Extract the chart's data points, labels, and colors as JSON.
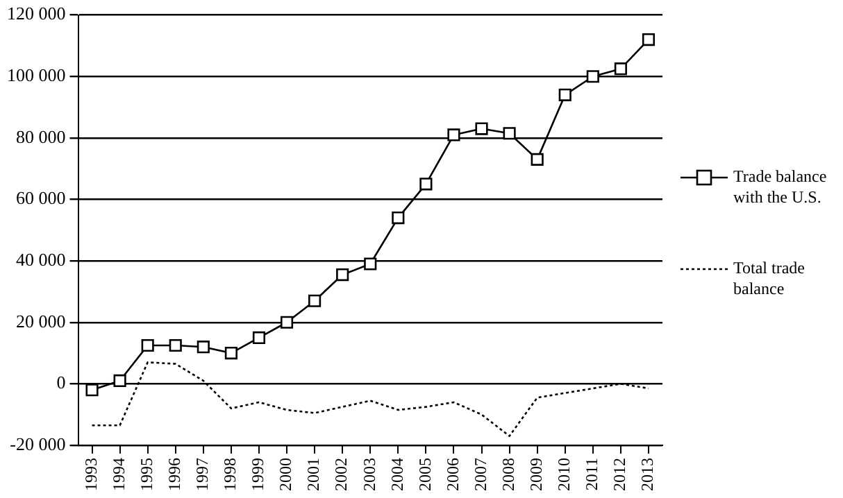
{
  "chart_data": {
    "type": "line",
    "categories": [
      "1993",
      "1994",
      "1995",
      "1996",
      "1997",
      "1998",
      "1999",
      "2000",
      "2001",
      "2002",
      "2003",
      "2004",
      "2005",
      "2006",
      "2007",
      "2008",
      "2009",
      "2010",
      "2011",
      "2012",
      "2013"
    ],
    "series": [
      {
        "name": "Trade balance with the U.S.",
        "color": "#000000",
        "marker": "square",
        "line_style": "solid",
        "values": [
          -2000,
          1000,
          12500,
          12500,
          12000,
          10000,
          15000,
          20000,
          27000,
          35500,
          39000,
          54000,
          65000,
          81000,
          83000,
          81500,
          73000,
          94000,
          100000,
          102500,
          112000
        ]
      },
      {
        "name": "Total trade balance",
        "color": "#000000",
        "marker": "none",
        "line_style": "dotted",
        "values": [
          -13500,
          -13500,
          7000,
          6500,
          1000,
          -8000,
          -6000,
          -8500,
          -9500,
          -7500,
          -5500,
          -8500,
          -7500,
          -6000,
          -10000,
          -17000,
          -4500,
          -3000,
          -1500,
          0,
          -1500
        ]
      }
    ],
    "ylim": [
      -20000,
      120000
    ],
    "yticks": [
      {
        "value": -20000,
        "label": "-20 000"
      },
      0,
      {
        "value": 20000,
        "label": "20 000"
      },
      {
        "value": 40000,
        "label": "40 000"
      },
      {
        "value": 60000,
        "label": "60 000"
      },
      {
        "value": 80000,
        "label": "80 000"
      },
      {
        "value": 100000,
        "label": "100 000"
      },
      {
        "value": 120000,
        "label": "120 000"
      }
    ],
    "grid": "y",
    "legend": "right"
  }
}
